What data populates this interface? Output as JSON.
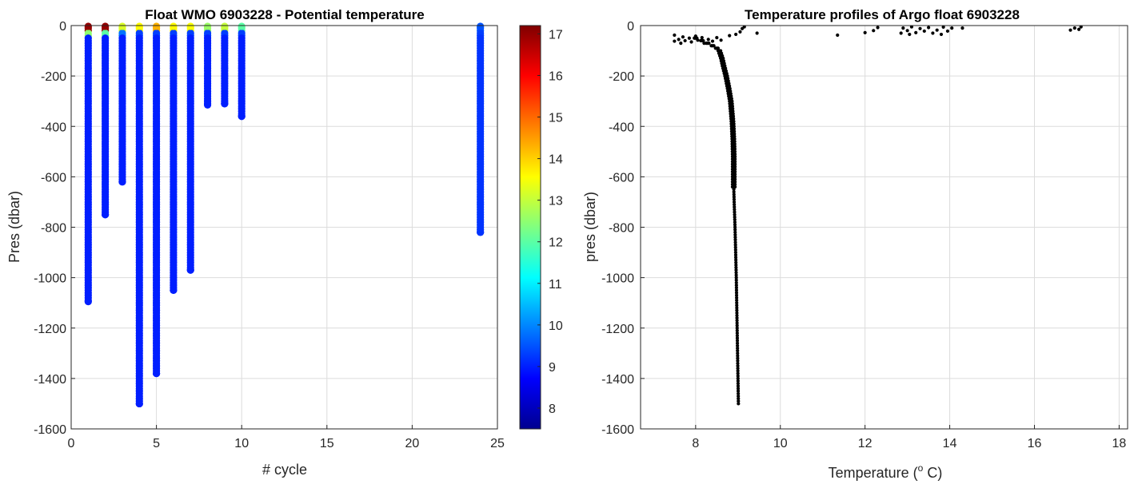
{
  "chart_data": [
    {
      "type": "scatter",
      "title": "Float WMO 6903228 - Potential temperature",
      "xlabel": "# cycle",
      "ylabel": "Pres (dbar)",
      "xlim": [
        0,
        25
      ],
      "ylim": [
        -1600,
        0
      ],
      "xticks": [
        "0",
        "5",
        "10",
        "15",
        "20",
        "25"
      ],
      "yticks": [
        "0",
        "-200",
        "-400",
        "-600",
        "-800",
        "-1000",
        "-1200",
        "-1400",
        "-1600"
      ],
      "colorbar": {
        "colormap": "jet",
        "range": [
          7.5,
          17.2
        ],
        "ticks": [
          "8",
          "9",
          "10",
          "11",
          "12",
          "13",
          "14",
          "15",
          "16",
          "17"
        ]
      },
      "grid": true,
      "profiles": [
        {
          "cycle": 1,
          "max_depth": -1095,
          "surface_temp": 17.0,
          "temp_30dbar": 12.5,
          "deep_temp": 9.0
        },
        {
          "cycle": 2,
          "max_depth": -750,
          "surface_temp": 17.0,
          "temp_30dbar": 12.0,
          "deep_temp": 9.0
        },
        {
          "cycle": 3,
          "max_depth": -620,
          "surface_temp": 13.2,
          "temp_30dbar": 9.8,
          "deep_temp": 9.0
        },
        {
          "cycle": 4,
          "max_depth": -1500,
          "surface_temp": 13.6,
          "temp_30dbar": 9.3,
          "deep_temp": 9.0
        },
        {
          "cycle": 5,
          "max_depth": -1380,
          "surface_temp": 14.3,
          "temp_30dbar": 9.3,
          "deep_temp": 9.0
        },
        {
          "cycle": 6,
          "max_depth": -1050,
          "surface_temp": 13.6,
          "temp_30dbar": 9.3,
          "deep_temp": 9.0
        },
        {
          "cycle": 7,
          "max_depth": -970,
          "surface_temp": 13.5,
          "temp_30dbar": 9.3,
          "deep_temp": 9.0
        },
        {
          "cycle": 8,
          "max_depth": -315,
          "surface_temp": 12.6,
          "temp_30dbar": 9.3,
          "deep_temp": 9.0
        },
        {
          "cycle": 9,
          "max_depth": -310,
          "surface_temp": 13.0,
          "temp_30dbar": 9.3,
          "deep_temp": 9.0
        },
        {
          "cycle": 10,
          "max_depth": -360,
          "surface_temp": 12.0,
          "temp_30dbar": 9.3,
          "deep_temp": 9.0
        },
        {
          "cycle": 24,
          "max_depth": -820,
          "surface_temp": 9.5,
          "temp_30dbar": 9.3,
          "deep_temp": 9.2
        }
      ]
    },
    {
      "type": "scatter",
      "title": "Temperature profiles of Argo float 6903228",
      "xlabel": "Temperature (",
      "xlabel_sup": "o",
      "xlabel_end": " C)",
      "ylabel": "pres (dbar)",
      "xlim": [
        6.7,
        18.2
      ],
      "ylim": [
        -1600,
        0
      ],
      "xticks": [
        "8",
        "10",
        "12",
        "14",
        "16",
        "18"
      ],
      "yticks": [
        "0",
        "-200",
        "-400",
        "-600",
        "-800",
        "-1000",
        "-1200",
        "-1400",
        "-1600"
      ],
      "grid": true,
      "marker_color": "#000000",
      "main_profile": [
        {
          "p": -50,
          "t": 8.0
        },
        {
          "p": -60,
          "t": 8.15
        },
        {
          "p": -75,
          "t": 8.35
        },
        {
          "p": -90,
          "t": 8.5
        },
        {
          "p": -100,
          "t": 8.56
        },
        {
          "p": -130,
          "t": 8.62
        },
        {
          "p": -160,
          "t": 8.66
        },
        {
          "p": -200,
          "t": 8.72
        },
        {
          "p": -250,
          "t": 8.78
        },
        {
          "p": -300,
          "t": 8.83
        },
        {
          "p": -380,
          "t": 8.87
        },
        {
          "p": -450,
          "t": 8.89
        },
        {
          "p": -520,
          "t": 8.9
        },
        {
          "p": -640,
          "t": 8.9
        },
        {
          "p": -700,
          "t": 8.91
        },
        {
          "p": -800,
          "t": 8.93
        },
        {
          "p": -1000,
          "t": 8.96
        },
        {
          "p": -1200,
          "t": 8.98
        },
        {
          "p": -1400,
          "t": 9.0
        },
        {
          "p": -1500,
          "t": 9.01
        }
      ],
      "surface_points": [
        {
          "t": 7.5,
          "p": -38
        },
        {
          "t": 7.5,
          "p": -62
        },
        {
          "t": 7.6,
          "p": -55
        },
        {
          "t": 7.65,
          "p": -70
        },
        {
          "t": 7.7,
          "p": -45
        },
        {
          "t": 7.75,
          "p": -60
        },
        {
          "t": 7.85,
          "p": -50
        },
        {
          "t": 7.9,
          "p": -65
        },
        {
          "t": 8.0,
          "p": -42
        },
        {
          "t": 8.05,
          "p": -58
        },
        {
          "t": 8.15,
          "p": -48
        },
        {
          "t": 8.2,
          "p": -70
        },
        {
          "t": 8.3,
          "p": -55
        },
        {
          "t": 8.4,
          "p": -62
        },
        {
          "t": 8.5,
          "p": -48
        },
        {
          "t": 8.6,
          "p": -58
        },
        {
          "t": 8.8,
          "p": -40
        },
        {
          "t": 8.95,
          "p": -35
        },
        {
          "t": 9.05,
          "p": -25
        },
        {
          "t": 9.1,
          "p": -12
        },
        {
          "t": 9.15,
          "p": -5
        },
        {
          "t": 9.45,
          "p": -30
        },
        {
          "t": 11.35,
          "p": -38
        },
        {
          "t": 12.0,
          "p": -28
        },
        {
          "t": 12.2,
          "p": -20
        },
        {
          "t": 12.3,
          "p": -8
        },
        {
          "t": 12.85,
          "p": -30
        },
        {
          "t": 12.9,
          "p": -10
        },
        {
          "t": 13.0,
          "p": -20
        },
        {
          "t": 13.05,
          "p": -35
        },
        {
          "t": 13.1,
          "p": -5
        },
        {
          "t": 13.2,
          "p": -28
        },
        {
          "t": 13.3,
          "p": -12
        },
        {
          "t": 13.4,
          "p": -22
        },
        {
          "t": 13.5,
          "p": -8
        },
        {
          "t": 13.6,
          "p": -30
        },
        {
          "t": 13.7,
          "p": -18
        },
        {
          "t": 13.8,
          "p": -35
        },
        {
          "t": 13.85,
          "p": -6
        },
        {
          "t": 13.95,
          "p": -22
        },
        {
          "t": 14.05,
          "p": -10
        },
        {
          "t": 14.3,
          "p": -10
        },
        {
          "t": 16.85,
          "p": -18
        },
        {
          "t": 16.95,
          "p": -10
        },
        {
          "t": 17.05,
          "p": -15
        },
        {
          "t": 17.1,
          "p": -5
        }
      ]
    }
  ]
}
